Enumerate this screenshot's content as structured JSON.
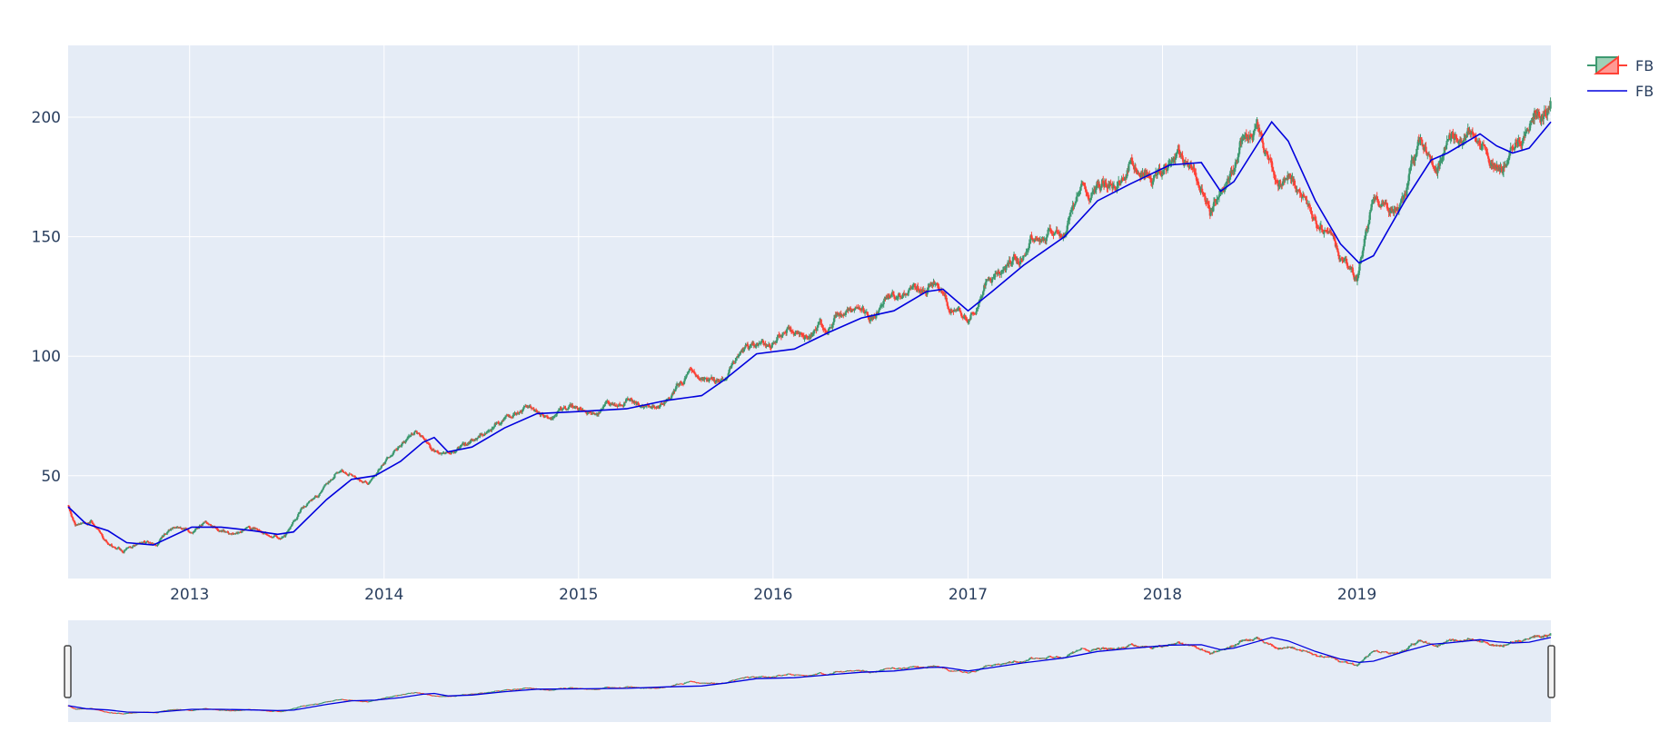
{
  "chart_data": {
    "type": "candlestick",
    "plot_bg": "#e5ecf6",
    "grid": true,
    "grid_color": "#ffffff",
    "legend_position": "top-right",
    "increasing_color": "#3d9970",
    "decreasing_color": "#ff4136",
    "ma_color": "#0000dd",
    "xlim": [
      "2012-05-18",
      "2019-12-31"
    ],
    "ylim": [
      7,
      230
    ],
    "x_ticks": [
      "2013",
      "2014",
      "2015",
      "2016",
      "2017",
      "2018",
      "2019"
    ],
    "y_ticks": [
      50,
      100,
      150,
      200
    ],
    "series": [
      {
        "name": "FB",
        "kind": "ohlc",
        "monthly_close": [
          [
            "2012-05",
            29.6
          ],
          [
            "2012-06",
            31.1
          ],
          [
            "2012-07",
            21.7
          ],
          [
            "2012-08",
            18.1
          ],
          [
            "2012-09",
            21.7
          ],
          [
            "2012-10",
            21.1
          ],
          [
            "2012-11",
            28.0
          ],
          [
            "2012-12",
            26.6
          ],
          [
            "2013-01",
            31.0
          ],
          [
            "2013-02",
            27.3
          ],
          [
            "2013-03",
            25.6
          ],
          [
            "2013-04",
            27.8
          ],
          [
            "2013-05",
            24.4
          ],
          [
            "2013-06",
            24.9
          ],
          [
            "2013-07",
            36.8
          ],
          [
            "2013-08",
            41.3
          ],
          [
            "2013-09",
            50.2
          ],
          [
            "2013-10",
            50.2
          ],
          [
            "2013-11",
            47.0
          ],
          [
            "2013-12",
            54.7
          ],
          [
            "2014-01",
            62.6
          ],
          [
            "2014-02",
            68.5
          ],
          [
            "2014-03",
            60.2
          ],
          [
            "2014-04",
            59.8
          ],
          [
            "2014-05",
            63.3
          ],
          [
            "2014-06",
            67.3
          ],
          [
            "2014-07",
            72.7
          ],
          [
            "2014-08",
            74.8
          ],
          [
            "2014-09",
            79.0
          ],
          [
            "2014-10",
            75.0
          ],
          [
            "2014-11",
            77.7
          ],
          [
            "2014-12",
            78.0
          ],
          [
            "2015-01",
            75.9
          ],
          [
            "2015-02",
            79.6
          ],
          [
            "2015-03",
            82.2
          ],
          [
            "2015-04",
            78.8
          ],
          [
            "2015-05",
            79.2
          ],
          [
            "2015-06",
            85.8
          ],
          [
            "2015-07",
            94.0
          ],
          [
            "2015-08",
            89.4
          ],
          [
            "2015-09",
            89.9
          ],
          [
            "2015-10",
            101.9
          ],
          [
            "2015-11",
            104.2
          ],
          [
            "2015-12",
            104.7
          ],
          [
            "2016-01",
            112.2
          ],
          [
            "2016-02",
            106.9
          ],
          [
            "2016-03",
            114.1
          ],
          [
            "2016-04",
            117.6
          ],
          [
            "2016-05",
            118.8
          ],
          [
            "2016-06",
            114.3
          ],
          [
            "2016-07",
            123.9
          ],
          [
            "2016-08",
            126.1
          ],
          [
            "2016-09",
            128.3
          ],
          [
            "2016-10",
            131.0
          ],
          [
            "2016-11",
            118.4
          ],
          [
            "2016-12",
            115.1
          ],
          [
            "2017-01",
            130.3
          ],
          [
            "2017-02",
            135.5
          ],
          [
            "2017-03",
            142.1
          ],
          [
            "2017-04",
            150.3
          ],
          [
            "2017-05",
            151.5
          ],
          [
            "2017-06",
            151.0
          ],
          [
            "2017-07",
            169.3
          ],
          [
            "2017-08",
            171.9
          ],
          [
            "2017-09",
            170.9
          ],
          [
            "2017-10",
            180.1
          ],
          [
            "2017-11",
            177.2
          ],
          [
            "2017-12",
            176.5
          ],
          [
            "2018-01",
            186.9
          ],
          [
            "2018-02",
            178.3
          ],
          [
            "2018-03",
            159.8
          ],
          [
            "2018-04",
            172.0
          ],
          [
            "2018-05",
            191.8
          ],
          [
            "2018-06",
            194.3
          ],
          [
            "2018-07",
            172.6
          ],
          [
            "2018-08",
            175.7
          ],
          [
            "2018-09",
            164.5
          ],
          [
            "2018-10",
            151.8
          ],
          [
            "2018-11",
            140.6
          ],
          [
            "2018-12",
            131.1
          ],
          [
            "2019-01",
            166.7
          ],
          [
            "2019-02",
            161.5
          ],
          [
            "2019-03",
            166.7
          ],
          [
            "2019-04",
            193.4
          ],
          [
            "2019-05",
            177.5
          ],
          [
            "2019-06",
            193.0
          ],
          [
            "2019-07",
            194.2
          ],
          [
            "2019-08",
            185.7
          ],
          [
            "2019-09",
            178.1
          ],
          [
            "2019-10",
            191.7
          ],
          [
            "2019-11",
            201.6
          ],
          [
            "2019-12",
            205.3
          ]
        ]
      },
      {
        "name": "FB",
        "kind": "moving-average",
        "points": [
          [
            "2012-05-18",
            37.0
          ],
          [
            "2012-06-20",
            30.0
          ],
          [
            "2012-08-01",
            27.0
          ],
          [
            "2012-09-05",
            22.0
          ],
          [
            "2012-10-25",
            21.0
          ],
          [
            "2013-01-05",
            28.5
          ],
          [
            "2013-03-01",
            28.5
          ],
          [
            "2013-05-01",
            27.0
          ],
          [
            "2013-06-15",
            25.5
          ],
          [
            "2013-07-15",
            26.5
          ],
          [
            "2013-09-15",
            40.0
          ],
          [
            "2013-11-01",
            48.5
          ],
          [
            "2013-12-15",
            50.0
          ],
          [
            "2014-02-01",
            56.0
          ],
          [
            "2014-03-15",
            64.0
          ],
          [
            "2014-04-05",
            66.0
          ],
          [
            "2014-05-01",
            60.0
          ],
          [
            "2014-06-15",
            62.0
          ],
          [
            "2014-08-15",
            70.0
          ],
          [
            "2014-10-15",
            76.0
          ],
          [
            "2015-01-15",
            77.0
          ],
          [
            "2015-04-01",
            78.0
          ],
          [
            "2015-06-15",
            81.5
          ],
          [
            "2015-08-20",
            83.5
          ],
          [
            "2015-10-01",
            90.0
          ],
          [
            "2015-12-01",
            101.0
          ],
          [
            "2016-02-10",
            103.0
          ],
          [
            "2016-04-15",
            110.0
          ],
          [
            "2016-06-15",
            116.0
          ],
          [
            "2016-08-15",
            119.0
          ],
          [
            "2016-10-15",
            127.0
          ],
          [
            "2016-11-15",
            128.0
          ],
          [
            "2017-01-01",
            119.0
          ],
          [
            "2017-02-15",
            127.0
          ],
          [
            "2017-04-15",
            138.0
          ],
          [
            "2017-07-01",
            150.0
          ],
          [
            "2017-09-01",
            165.0
          ],
          [
            "2017-11-01",
            172.0
          ],
          [
            "2018-01-15",
            180.0
          ],
          [
            "2018-03-15",
            181.0
          ],
          [
            "2018-04-20",
            169.0
          ],
          [
            "2018-05-15",
            173.0
          ],
          [
            "2018-07-25",
            198.0
          ],
          [
            "2018-08-25",
            190.0
          ],
          [
            "2018-10-15",
            165.0
          ],
          [
            "2018-12-01",
            147.0
          ],
          [
            "2019-01-05",
            139.0
          ],
          [
            "2019-02-01",
            142.0
          ],
          [
            "2019-04-01",
            165.0
          ],
          [
            "2019-05-20",
            182.0
          ],
          [
            "2019-06-20",
            185.0
          ],
          [
            "2019-08-20",
            193.0
          ],
          [
            "2019-09-20",
            188.0
          ],
          [
            "2019-10-20",
            185.0
          ],
          [
            "2019-11-20",
            187.0
          ],
          [
            "2019-12-31",
            198.0
          ]
        ]
      }
    ],
    "legend": [
      "FB",
      "FB"
    ]
  }
}
